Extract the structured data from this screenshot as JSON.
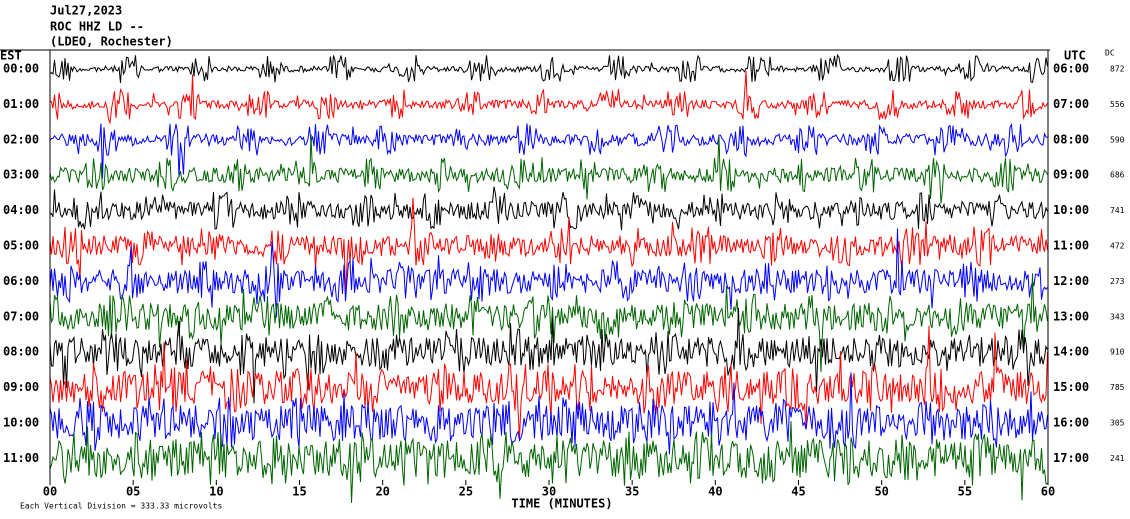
{
  "header": {
    "date": "Jul27,2023",
    "station": "ROC HHZ LD --",
    "network": "(LDEO, Rochester)"
  },
  "left_axis": {
    "title": "EST",
    "labels": [
      "00:00",
      "01:00",
      "02:00",
      "03:00",
      "04:00",
      "05:00",
      "06:00",
      "07:00",
      "08:00",
      "09:00",
      "10:00",
      "11:00"
    ]
  },
  "right_axis": {
    "title": "UTC",
    "labels": [
      "06:00",
      "07:00",
      "08:00",
      "09:00",
      "10:00",
      "11:00",
      "12:00",
      "13:00",
      "14:00",
      "15:00",
      "16:00",
      "17:00"
    ]
  },
  "dc": {
    "title": "DC",
    "values": [
      872,
      556,
      590,
      686,
      741,
      472,
      273,
      343,
      910,
      785,
      305,
      241
    ]
  },
  "x_axis": {
    "title": "TIME (MINUTES)",
    "ticks": [
      "00",
      "05",
      "10",
      "15",
      "20",
      "25",
      "30",
      "35",
      "40",
      "45",
      "50",
      "55",
      "60"
    ]
  },
  "footer": "Each Vertical Division = 333.33 microvolts",
  "trace_colors": [
    "#000000",
    "#ff0000",
    "#0000ff",
    "#006400"
  ]
}
